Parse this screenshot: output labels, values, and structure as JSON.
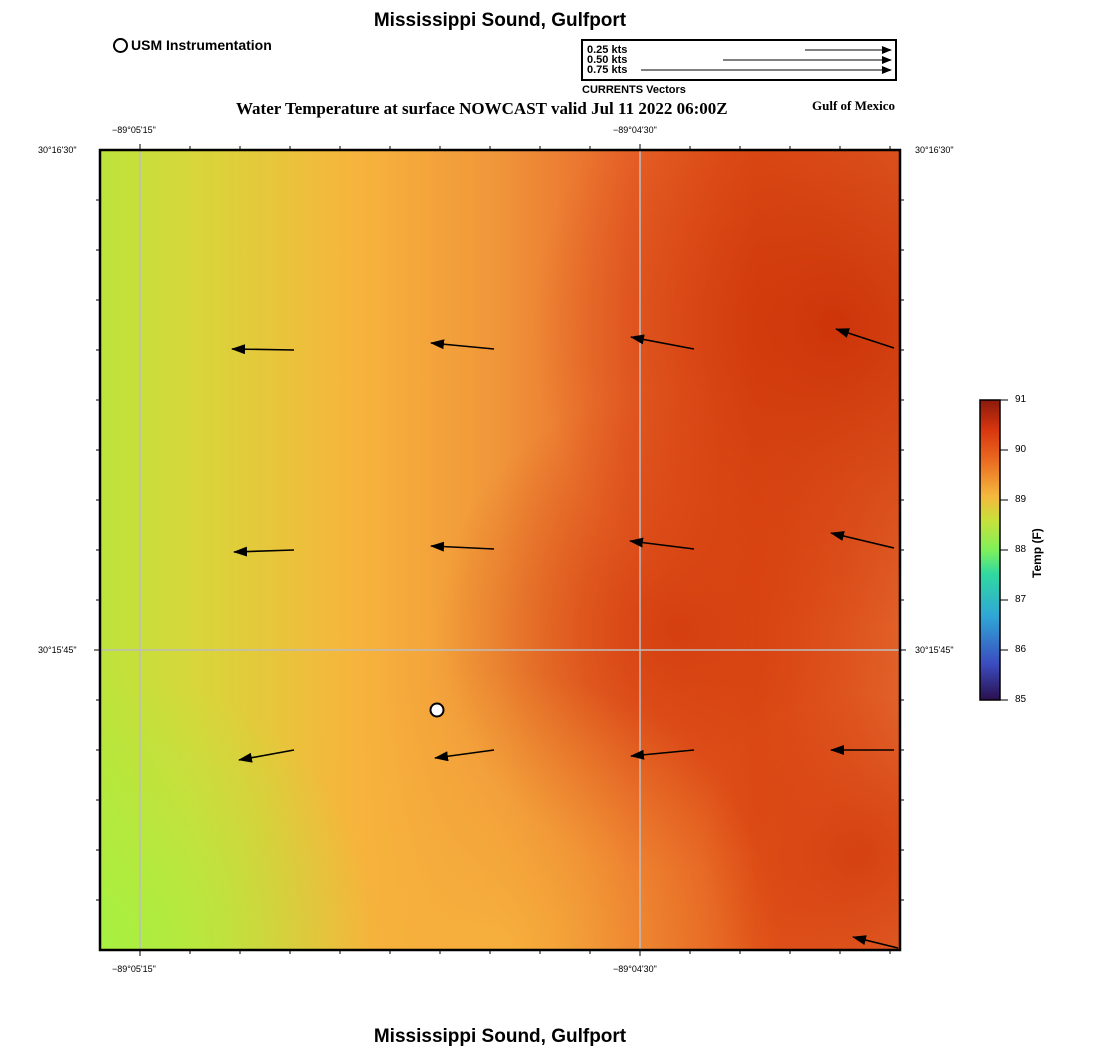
{
  "title": "Mississippi Sound, Gulfport",
  "footer_title": "Mississippi Sound, Gulfport",
  "subtitle": "Water Temperature at surface NOWCAST valid Jul 11 2022 06:00Z",
  "region_label": "Gulf of Mexico",
  "station_legend": {
    "label": "USM Instrumentation"
  },
  "vector_legend": {
    "caption": "CURRENTS Vectors",
    "scales": [
      {
        "label": "0.25 kts",
        "speed_kts": 0.25
      },
      {
        "label": "0.50 kts",
        "speed_kts": 0.5
      },
      {
        "label": "0.75 kts",
        "speed_kts": 0.75
      }
    ]
  },
  "axes": {
    "x_top": [
      "−89°05'15\"",
      "−89°04'30\""
    ],
    "x_bottom": [
      "−89°05'15\"",
      "−89°04'30\""
    ],
    "y_left": [
      "30°16'30\"",
      "30°15'45\""
    ],
    "y_right": [
      "30°16'30\"",
      "30°15'45\""
    ]
  },
  "colorbar": {
    "title": "Temp (F)",
    "ticks": [
      "91",
      "90",
      "89",
      "88",
      "87",
      "86",
      "85"
    ],
    "stops": [
      "#2b0f4d",
      "#3b4cc0",
      "#2fa7d6",
      "#30d9a0",
      "#7ff05a",
      "#c9e03a",
      "#f5b83d",
      "#ea6a20",
      "#d8360f",
      "#8b1a0c"
    ]
  },
  "colors": {
    "cool": "#a8f040",
    "mid": "#f7b43c",
    "warm": "#df4a10",
    "hot": "#cc3308",
    "grid": "#bdbdbd"
  },
  "current_vectors": [
    {
      "row": 1,
      "col": 1,
      "dir": "W"
    },
    {
      "row": 1,
      "col": 2,
      "dir": "W"
    },
    {
      "row": 1,
      "col": 3,
      "dir": "WNW"
    },
    {
      "row": 1,
      "col": 4,
      "dir": "WNW"
    },
    {
      "row": 2,
      "col": 1,
      "dir": "W"
    },
    {
      "row": 2,
      "col": 2,
      "dir": "W"
    },
    {
      "row": 2,
      "col": 3,
      "dir": "W"
    },
    {
      "row": 2,
      "col": 4,
      "dir": "WNW"
    },
    {
      "row": 3,
      "col": 1,
      "dir": "WSW"
    },
    {
      "row": 3,
      "col": 2,
      "dir": "WSW"
    },
    {
      "row": 3,
      "col": 3,
      "dir": "W"
    },
    {
      "row": 3,
      "col": 4,
      "dir": "W"
    },
    {
      "row": 4,
      "col": 4,
      "dir": "WNW"
    }
  ]
}
